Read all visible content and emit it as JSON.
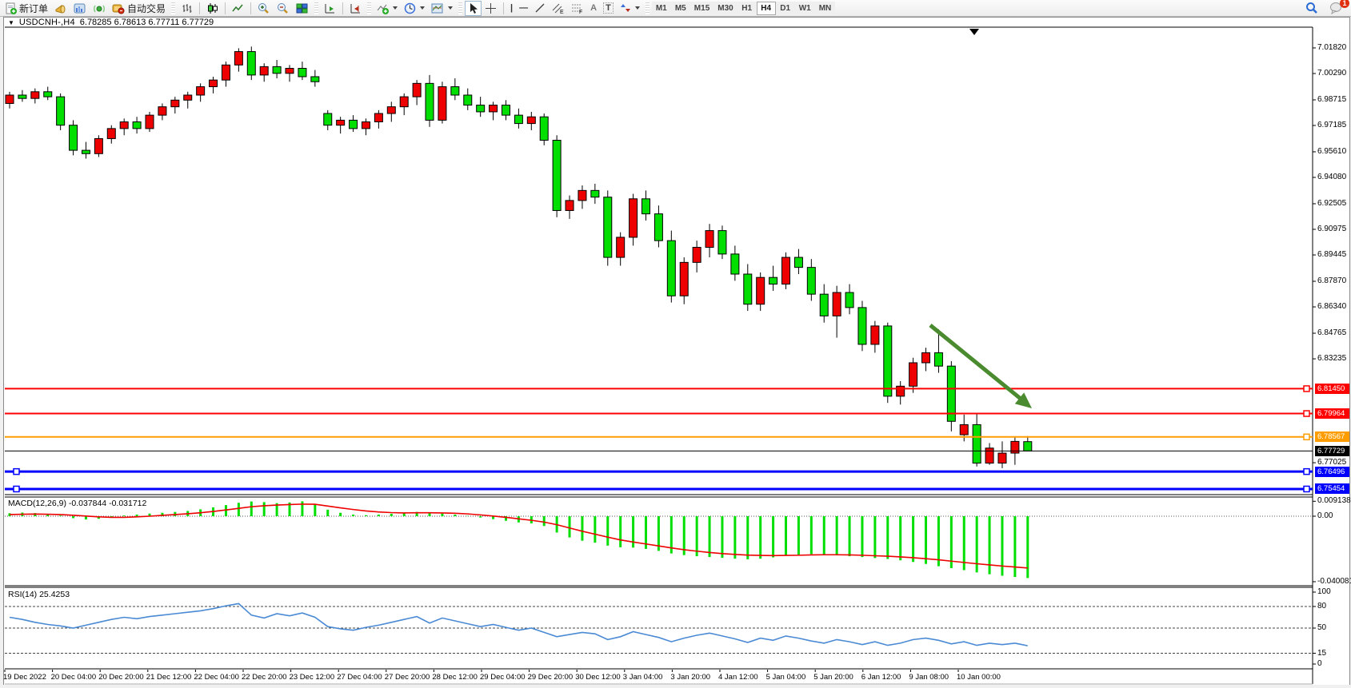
{
  "toolbar": {
    "new_order_label": "新订单",
    "auto_trading_label": "自动交易",
    "timeframes": [
      "M1",
      "M5",
      "M15",
      "M30",
      "H1",
      "H4",
      "D1",
      "W1",
      "MN"
    ],
    "active_timeframe": "H4",
    "notification_count": "1",
    "glyphs": {
      "text_tool": "A",
      "label_tool": "T",
      "channel_tool": "E",
      "fibo_tool": "F",
      "vline": "|",
      "hline": "—",
      "trendline": "/"
    }
  },
  "chart": {
    "title": "USDCNH-,H4",
    "ohlc_text": "6.78285 6.78613 6.77711 6.77729",
    "open": "6.78285",
    "high": "6.78613",
    "low": "6.77711",
    "close": "6.77729"
  },
  "colors": {
    "bull": "#ee0000",
    "bear": "#00df00",
    "candle_border": "#000000",
    "hline_red": "#ff0000",
    "hline_orange": "#ff9d00",
    "hline_blue": "#0000ff",
    "price_label_bg": "#000000",
    "macd_hist": "#00df00",
    "macd_signal": "#ee0000",
    "rsi_line": "#4a8ad4",
    "arrow_green": "#4b8b2f"
  },
  "chart_data": {
    "type": "candlestick",
    "symbol": "USDCNH-",
    "timeframe": "H4",
    "price_axis": {
      "max": 7.0306,
      "min": 6.7507,
      "ticks": [
        "7.01820",
        "7.00290",
        "6.98715",
        "6.97185",
        "6.95610",
        "6.94080",
        "6.92505",
        "6.90975",
        "6.89445",
        "6.87870",
        "6.86340",
        "6.84765",
        "6.83235",
        "6.77025"
      ]
    },
    "hlines": [
      {
        "value": 6.8145,
        "label": "6.81450",
        "color": "#ff0000",
        "width": 2,
        "handles": "right"
      },
      {
        "value": 6.79964,
        "label": "6.79964",
        "color": "#ff0000",
        "width": 2,
        "handles": "right"
      },
      {
        "value": 6.78567,
        "label": "6.78567",
        "color": "#ff9d00",
        "width": 2,
        "handles": "right"
      },
      {
        "value": 6.76496,
        "label": "6.76496",
        "color": "#0000ff",
        "width": 3,
        "handles": "both"
      },
      {
        "value": 6.75454,
        "label": "6.75454",
        "color": "#0000ff",
        "width": 3,
        "handles": "both"
      }
    ],
    "current_price": {
      "value": 6.77729,
      "label": "6.77729"
    },
    "candles": [
      [
        6.985,
        6.992,
        6.982,
        6.99
      ],
      [
        6.99,
        6.993,
        6.986,
        6.988
      ],
      [
        6.988,
        6.994,
        6.985,
        6.992
      ],
      [
        6.992,
        6.995,
        6.987,
        6.989
      ],
      [
        6.989,
        6.991,
        6.969,
        6.972
      ],
      [
        6.972,
        6.975,
        6.954,
        6.957
      ],
      [
        6.957,
        6.962,
        6.952,
        6.955
      ],
      [
        6.955,
        6.966,
        6.953,
        6.964
      ],
      [
        6.964,
        6.972,
        6.961,
        6.97
      ],
      [
        6.97,
        6.976,
        6.966,
        6.974
      ],
      [
        6.974,
        6.977,
        6.967,
        6.97
      ],
      [
        6.97,
        6.98,
        6.968,
        6.978
      ],
      [
        6.978,
        6.985,
        6.975,
        6.983
      ],
      [
        6.983,
        6.989,
        6.979,
        6.987
      ],
      [
        6.987,
        6.992,
        6.982,
        6.99
      ],
      [
        6.99,
        6.997,
        6.986,
        6.995
      ],
      [
        6.995,
        7.001,
        6.991,
        6.999
      ],
      [
        6.999,
        7.01,
        6.995,
        7.008
      ],
      [
        7.008,
        7.018,
        7.004,
        7.016
      ],
      [
        7.016,
        7.019,
        6.999,
        7.002
      ],
      [
        7.002,
        7.009,
        6.998,
        7.007
      ],
      [
        7.007,
        7.011,
        7.0,
        7.003
      ],
      [
        7.003,
        7.008,
        6.998,
        7.006
      ],
      [
        7.006,
        7.01,
        6.999,
        7.001
      ],
      [
        7.001,
        7.005,
        6.995,
        6.998
      ],
      [
        6.979,
        6.981,
        6.969,
        6.972
      ],
      [
        6.972,
        6.977,
        6.967,
        6.975
      ],
      [
        6.975,
        6.978,
        6.968,
        6.97
      ],
      [
        6.97,
        6.976,
        6.966,
        6.974
      ],
      [
        6.974,
        6.981,
        6.97,
        6.979
      ],
      [
        6.979,
        6.986,
        6.974,
        6.983
      ],
      [
        6.983,
        6.991,
        6.978,
        6.989
      ],
      [
        6.989,
        6.999,
        6.984,
        6.997
      ],
      [
        6.997,
        7.002,
        6.971,
        6.975
      ],
      [
        6.975,
        6.998,
        6.973,
        6.995
      ],
      [
        6.995,
        7.0,
        6.987,
        6.99
      ],
      [
        6.99,
        6.994,
        6.981,
        6.984
      ],
      [
        6.984,
        6.989,
        6.977,
        6.98
      ],
      [
        6.98,
        6.986,
        6.975,
        6.984
      ],
      [
        6.984,
        6.987,
        6.975,
        6.978
      ],
      [
        6.978,
        6.982,
        6.97,
        6.973
      ],
      [
        6.973,
        6.98,
        6.969,
        6.977
      ],
      [
        6.977,
        6.979,
        6.96,
        6.963
      ],
      [
        6.963,
        6.966,
        6.917,
        6.921
      ],
      [
        6.921,
        6.93,
        6.916,
        6.927
      ],
      [
        6.927,
        6.936,
        6.922,
        6.933
      ],
      [
        6.933,
        6.937,
        6.925,
        6.929
      ],
      [
        6.929,
        6.933,
        6.888,
        6.893
      ],
      [
        6.893,
        6.908,
        6.888,
        6.905
      ],
      [
        6.905,
        6.931,
        6.9,
        6.928
      ],
      [
        6.928,
        6.933,
        6.915,
        6.919
      ],
      [
        6.919,
        6.924,
        6.899,
        6.903
      ],
      [
        6.903,
        6.909,
        6.866,
        6.87
      ],
      [
        6.87,
        6.893,
        6.865,
        6.89
      ],
      [
        6.89,
        6.903,
        6.884,
        6.899
      ],
      [
        6.899,
        6.913,
        6.893,
        6.909
      ],
      [
        6.909,
        6.912,
        6.892,
        6.895
      ],
      [
        6.895,
        6.9,
        6.879,
        6.883
      ],
      [
        6.883,
        6.889,
        6.861,
        6.865
      ],
      [
        6.865,
        6.884,
        6.861,
        6.881
      ],
      [
        6.881,
        6.888,
        6.873,
        6.877
      ],
      [
        6.877,
        6.896,
        6.874,
        6.893
      ],
      [
        6.893,
        6.898,
        6.883,
        6.887
      ],
      [
        6.887,
        6.892,
        6.867,
        6.871
      ],
      [
        6.871,
        6.877,
        6.854,
        6.858
      ],
      [
        6.858,
        6.876,
        6.845,
        6.872
      ],
      [
        6.872,
        6.877,
        6.859,
        6.863
      ],
      [
        6.863,
        6.867,
        6.837,
        6.841
      ],
      [
        6.841,
        6.855,
        6.836,
        6.852
      ],
      [
        6.852,
        6.854,
        6.806,
        6.81
      ],
      [
        6.81,
        6.819,
        6.805,
        6.816
      ],
      [
        6.816,
        6.833,
        6.812,
        6.83
      ],
      [
        6.83,
        6.839,
        6.825,
        6.836
      ],
      [
        6.836,
        6.85,
        6.824,
        6.828
      ],
      [
        6.828,
        6.831,
        6.789,
        6.795
      ],
      [
        6.787,
        6.799,
        6.783,
        6.793
      ],
      [
        6.793,
        6.8,
        6.768,
        6.77
      ],
      [
        6.77,
        6.782,
        6.769,
        6.779
      ],
      [
        6.77,
        6.783,
        6.767,
        6.776
      ],
      [
        6.776,
        6.786,
        6.769,
        6.783
      ],
      [
        6.78285,
        6.78613,
        6.77711,
        6.77729
      ]
    ],
    "macd": {
      "label": "MACD(12,26,9) -0.037844 -0.031712",
      "axis_labels": [
        {
          "v": 0.009138,
          "t": "0.009138"
        },
        {
          "v": 0,
          "t": "0.00"
        },
        {
          "v": -0.040081,
          "t": "-0.040081"
        }
      ],
      "histogram": [
        0.0018,
        0.0022,
        0.0019,
        0.0012,
        0.0004,
        -0.0012,
        -0.002,
        -0.0016,
        -0.0008,
        0.0004,
        0.001,
        0.0016,
        0.0021,
        0.0026,
        0.0032,
        0.0042,
        0.0054,
        0.0068,
        0.0082,
        0.009,
        0.0086,
        0.008,
        0.0084,
        0.0091,
        0.0072,
        0.004,
        0.0021,
        0.001,
        0.0006,
        0.001,
        0.0015,
        0.002,
        0.0026,
        0.002,
        0.0016,
        0.001,
        0.0002,
        -0.0008,
        -0.0018,
        -0.0028,
        -0.0038,
        -0.0044,
        -0.006,
        -0.01,
        -0.013,
        -0.015,
        -0.0162,
        -0.018,
        -0.019,
        -0.0192,
        -0.02,
        -0.0212,
        -0.0228,
        -0.0238,
        -0.0245,
        -0.025,
        -0.0255,
        -0.026,
        -0.0264,
        -0.026,
        -0.0252,
        -0.0242,
        -0.0236,
        -0.0232,
        -0.0235,
        -0.024,
        -0.0245,
        -0.025,
        -0.0256,
        -0.0262,
        -0.027,
        -0.028,
        -0.0292,
        -0.0306,
        -0.0318,
        -0.033,
        -0.0344,
        -0.0355,
        -0.0364,
        -0.0372,
        -0.037844
      ],
      "signal": [
        0.001,
        0.0012,
        0.0013,
        0.0012,
        0.001,
        0.0006,
        0.0001,
        -0.0004,
        -0.0007,
        -0.0007,
        -0.0004,
        0.0,
        0.0005,
        0.001,
        0.0015,
        0.0021,
        0.0029,
        0.0038,
        0.0048,
        0.0058,
        0.0064,
        0.0068,
        0.0071,
        0.0074,
        0.0073,
        0.0062,
        0.0051,
        0.0041,
        0.0032,
        0.0026,
        0.0022,
        0.002,
        0.0021,
        0.0021,
        0.002,
        0.0018,
        0.0014,
        0.0008,
        0.0001,
        -0.0007,
        -0.0016,
        -0.0025,
        -0.0036,
        -0.0052,
        -0.0072,
        -0.0092,
        -0.011,
        -0.0128,
        -0.0145,
        -0.0158,
        -0.017,
        -0.0182,
        -0.0194,
        -0.0205,
        -0.0214,
        -0.0222,
        -0.0229,
        -0.0234,
        -0.0238,
        -0.024,
        -0.0241,
        -0.024,
        -0.0239,
        -0.0237,
        -0.0236,
        -0.0236,
        -0.0237,
        -0.0239,
        -0.0242,
        -0.0245,
        -0.0249,
        -0.0254,
        -0.026,
        -0.0267,
        -0.0275,
        -0.0283,
        -0.0291,
        -0.0298,
        -0.0305,
        -0.0311,
        -0.031712
      ]
    },
    "rsi": {
      "label": "RSI(14) 25.4253",
      "axis_labels": [
        {
          "v": 100,
          "t": "100"
        },
        {
          "v": 80,
          "t": "80"
        },
        {
          "v": 50,
          "t": "50"
        },
        {
          "v": 15,
          "t": "15"
        },
        {
          "v": 0,
          "t": "0"
        }
      ],
      "dashed_levels": [
        80,
        50,
        15
      ],
      "values": [
        65,
        62,
        58,
        55,
        53,
        50,
        54,
        58,
        62,
        65,
        63,
        66,
        68,
        70,
        72,
        74,
        77,
        81,
        84,
        68,
        64,
        70,
        67,
        71,
        65,
        52,
        49,
        47,
        51,
        54,
        58,
        62,
        66,
        57,
        64,
        60,
        56,
        52,
        55,
        51,
        47,
        50,
        44,
        38,
        41,
        44,
        42,
        34,
        38,
        45,
        41,
        37,
        31,
        36,
        40,
        43,
        39,
        35,
        30,
        36,
        33,
        39,
        36,
        32,
        29,
        34,
        31,
        27,
        31,
        26,
        29,
        34,
        36,
        33,
        28,
        31,
        26,
        29,
        27,
        29,
        25.4
      ]
    },
    "time_labels": [
      "19 Dec 2022",
      "20 Dec 04:00",
      "20 Dec 20:00",
      "21 Dec 12:00",
      "22 Dec 04:00",
      "22 Dec 20:00",
      "23 Dec 12:00",
      "27 Dec 04:00",
      "27 Dec 20:00",
      "28 Dec 12:00",
      "29 Dec 04:00",
      "29 Dec 20:00",
      "30 Dec 12:00",
      "3 Jan 04:00",
      "3 Jan 20:00",
      "4 Jan 12:00",
      "5 Jan 04:00",
      "5 Jan 20:00",
      "6 Jan 12:00",
      "9 Jan 08:00",
      "10 Jan 00:00"
    ],
    "annotations": [
      {
        "type": "arrow",
        "direction": "down-right",
        "color": "#4b8b2f"
      }
    ]
  }
}
